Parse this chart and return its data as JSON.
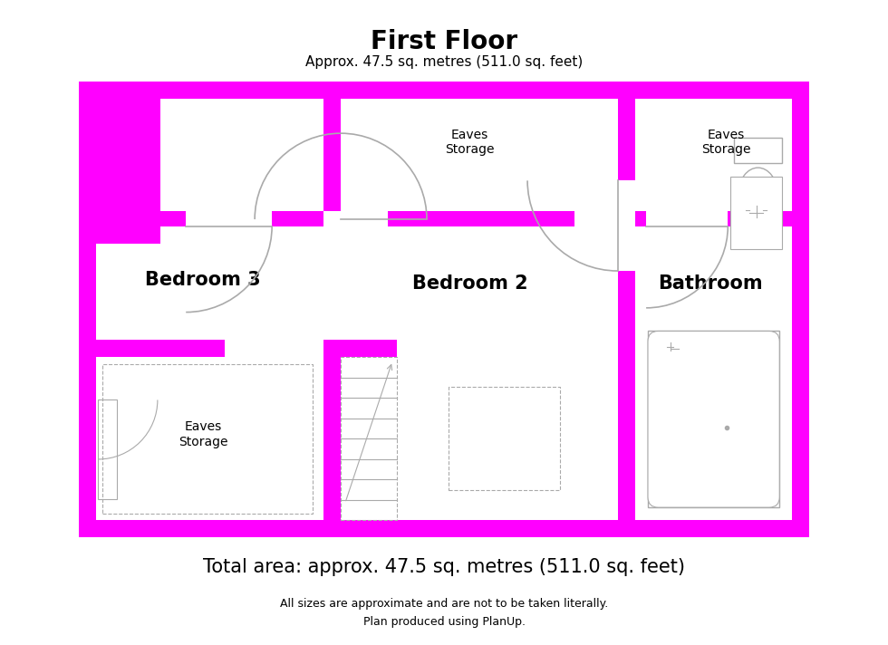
{
  "title": "First Floor",
  "subtitle": "Approx. 47.5 sq. metres (511.0 sq. feet)",
  "footer_main": "Total area: approx. 47.5 sq. metres (511.0 sq. feet)",
  "footer_line1": "All sizes are approximate and are not to be taken literally.",
  "footer_line2": "Plan produced using PlanUp.",
  "bg_color": "#ffffff",
  "wall_color": "#ff00ff",
  "line_color": "#aaaaaa",
  "label_fontsize_large": 15,
  "label_fontsize_small": 10,
  "room_labels": {
    "bedroom3": "Bedroom 3",
    "bedroom2": "Bedroom 2",
    "bathroom": "Bathroom",
    "eaves_top_mid": "Eaves\nStorage",
    "eaves_top_right": "Eaves\nStorage",
    "eaves_bottom": "Eaves\nStorage"
  }
}
